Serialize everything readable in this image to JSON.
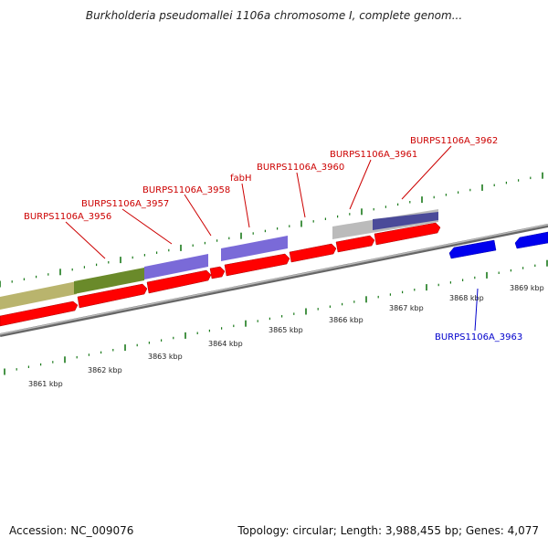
{
  "title": "Burkholderia pseudomallei 1106a chromosome I, complete genom...",
  "footer": {
    "accession": "Accession: NC_009076",
    "summary": "Topology: circular; Length: 3,988,455 bp; Genes: 4,077"
  },
  "colors": {
    "forward_gene": "#ff0000",
    "reverse_gene": "#0000ee",
    "tick_mark": "#1a7a1a",
    "backbone": "#808080",
    "forward_label": "#cc0000",
    "reverse_label": "#0000cc"
  },
  "tick_labels": [
    "3861 kbp",
    "3862 kbp",
    "3863 kbp",
    "3864 kbp",
    "3865 kbp",
    "3866 kbp",
    "3867 kbp",
    "3868 kbp",
    "3869 kbp"
  ],
  "gene_labels": {
    "forward": [
      "BURPS1106A_3956",
      "BURPS1106A_3957",
      "BURPS1106A_3958",
      "fabH",
      "BURPS1106A_3960",
      "BURPS1106A_3961",
      "BURPS1106A_3962"
    ],
    "reverse": [
      "BURPS1106A_3963"
    ]
  }
}
